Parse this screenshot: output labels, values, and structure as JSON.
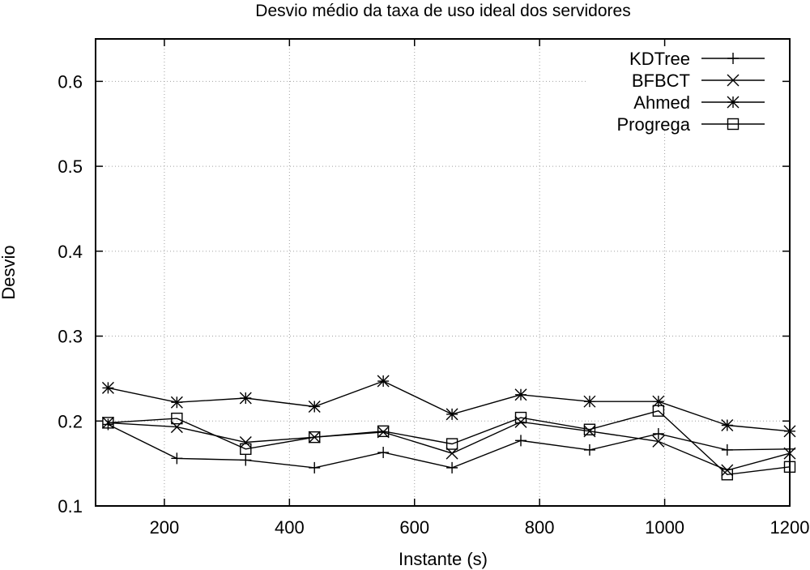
{
  "chart_data": {
    "type": "line",
    "title": "Desvio médio da taxa de uso ideal dos servidores",
    "xlabel": "Instante (s)",
    "ylabel": "Desvio",
    "xlim": [
      90,
      1200
    ],
    "ylim": [
      0.1,
      0.65
    ],
    "xticks": [
      200,
      400,
      600,
      800,
      1000,
      1200
    ],
    "yticks": [
      0.1,
      0.2,
      0.3,
      0.4,
      0.5,
      0.6
    ],
    "xtick_labels": [
      "200",
      "400",
      "600",
      "800",
      "1000",
      "1200"
    ],
    "ytick_labels": [
      "0.1",
      "0.2",
      "0.3",
      "0.4",
      "0.5",
      "0.6"
    ],
    "grid": true,
    "legend_position": "top-right",
    "x": [
      110,
      220,
      330,
      440,
      550,
      660,
      770,
      880,
      990,
      1100,
      1200
    ],
    "series": [
      {
        "name": "KDTree",
        "marker": "plus",
        "values": [
          0.196,
          0.156,
          0.154,
          0.145,
          0.163,
          0.145,
          0.177,
          0.166,
          0.185,
          0.166,
          0.167
        ]
      },
      {
        "name": "BFBCT",
        "marker": "x",
        "values": [
          0.198,
          0.193,
          0.175,
          0.181,
          0.187,
          0.162,
          0.199,
          0.188,
          0.176,
          0.142,
          0.162
        ]
      },
      {
        "name": "Ahmed",
        "marker": "asterisk",
        "values": [
          0.239,
          0.222,
          0.227,
          0.217,
          0.247,
          0.208,
          0.231,
          0.223,
          0.223,
          0.195,
          0.188
        ]
      },
      {
        "name": "Progrega",
        "marker": "square",
        "values": [
          0.198,
          0.203,
          0.167,
          0.181,
          0.188,
          0.173,
          0.204,
          0.19,
          0.212,
          0.137,
          0.146
        ]
      }
    ]
  }
}
